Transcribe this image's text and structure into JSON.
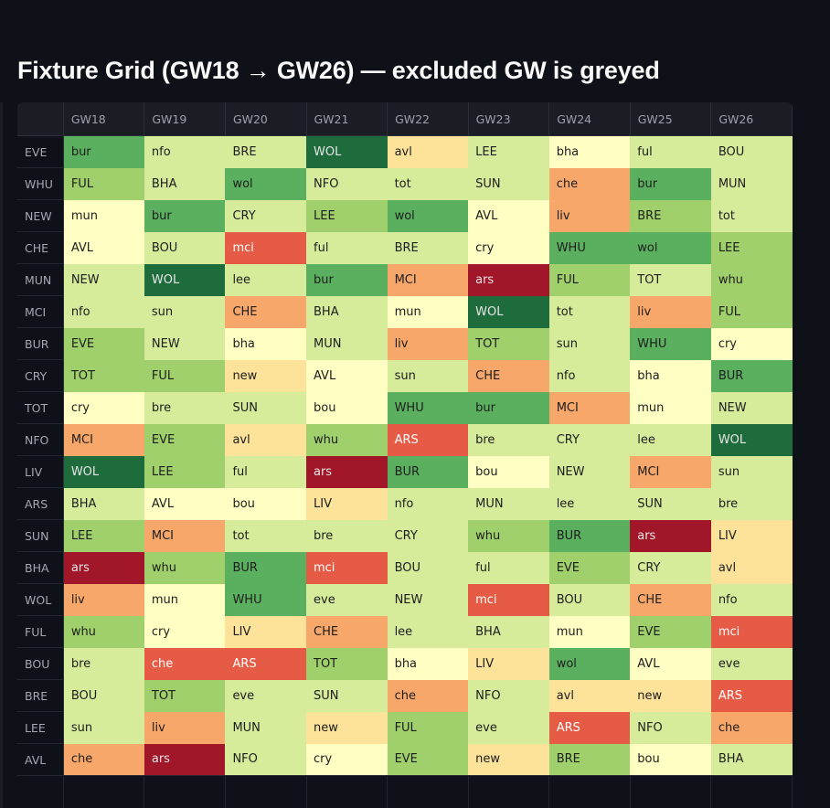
{
  "title": "Fixture Grid (GW18 → GW26) — excluded GW is greyed",
  "columns": [
    "GW18",
    "GW19",
    "GW20",
    "GW21",
    "GW22",
    "GW23",
    "GW24",
    "GW25",
    "GW26"
  ],
  "palette": {
    "1": "#1e6b3c",
    "2": "#5bb060",
    "3": "#9fd06b",
    "4": "#d6ec9b",
    "5": "#ffffc4",
    "6": "#fde29a",
    "7": "#f6a769",
    "8": "#e65b45",
    "9": "#a11628"
  },
  "rows": [
    {
      "team": "EVE",
      "cells": [
        [
          "bur",
          2
        ],
        [
          "nfo",
          4
        ],
        [
          "BRE",
          4
        ],
        [
          "WOL",
          1
        ],
        [
          "avl",
          6
        ],
        [
          "LEE",
          4
        ],
        [
          "bha",
          5
        ],
        [
          "ful",
          4
        ],
        [
          "BOU",
          4
        ]
      ]
    },
    {
      "team": "WHU",
      "cells": [
        [
          "FUL",
          3
        ],
        [
          "BHA",
          4
        ],
        [
          "wol",
          2
        ],
        [
          "NFO",
          4
        ],
        [
          "tot",
          4
        ],
        [
          "SUN",
          4
        ],
        [
          "che",
          7
        ],
        [
          "bur",
          2
        ],
        [
          "MUN",
          4
        ]
      ]
    },
    {
      "team": "NEW",
      "cells": [
        [
          "mun",
          5
        ],
        [
          "bur",
          2
        ],
        [
          "CRY",
          4
        ],
        [
          "LEE",
          3
        ],
        [
          "wol",
          2
        ],
        [
          "AVL",
          5
        ],
        [
          "liv",
          7
        ],
        [
          "BRE",
          3
        ],
        [
          "tot",
          4
        ]
      ]
    },
    {
      "team": "CHE",
      "cells": [
        [
          "AVL",
          5
        ],
        [
          "BOU",
          4
        ],
        [
          "mci",
          8
        ],
        [
          "ful",
          4
        ],
        [
          "BRE",
          4
        ],
        [
          "cry",
          5
        ],
        [
          "WHU",
          2
        ],
        [
          "wol",
          2
        ],
        [
          "LEE",
          3
        ]
      ]
    },
    {
      "team": "MUN",
      "cells": [
        [
          "NEW",
          4
        ],
        [
          "WOL",
          1
        ],
        [
          "lee",
          4
        ],
        [
          "bur",
          2
        ],
        [
          "MCI",
          7
        ],
        [
          "ars",
          9
        ],
        [
          "FUL",
          3
        ],
        [
          "TOT",
          4
        ],
        [
          "whu",
          3
        ]
      ]
    },
    {
      "team": "MCI",
      "cells": [
        [
          "nfo",
          4
        ],
        [
          "sun",
          4
        ],
        [
          "CHE",
          7
        ],
        [
          "BHA",
          4
        ],
        [
          "mun",
          5
        ],
        [
          "WOL",
          1
        ],
        [
          "tot",
          4
        ],
        [
          "liv",
          7
        ],
        [
          "FUL",
          3
        ]
      ]
    },
    {
      "team": "BUR",
      "cells": [
        [
          "EVE",
          3
        ],
        [
          "NEW",
          4
        ],
        [
          "bha",
          5
        ],
        [
          "MUN",
          4
        ],
        [
          "liv",
          7
        ],
        [
          "TOT",
          3
        ],
        [
          "sun",
          4
        ],
        [
          "WHU",
          2
        ],
        [
          "cry",
          5
        ]
      ]
    },
    {
      "team": "CRY",
      "cells": [
        [
          "TOT",
          3
        ],
        [
          "FUL",
          3
        ],
        [
          "new",
          6
        ],
        [
          "AVL",
          5
        ],
        [
          "sun",
          4
        ],
        [
          "CHE",
          7
        ],
        [
          "nfo",
          4
        ],
        [
          "bha",
          5
        ],
        [
          "BUR",
          2
        ]
      ]
    },
    {
      "team": "TOT",
      "cells": [
        [
          "cry",
          5
        ],
        [
          "bre",
          4
        ],
        [
          "SUN",
          4
        ],
        [
          "bou",
          5
        ],
        [
          "WHU",
          2
        ],
        [
          "bur",
          2
        ],
        [
          "MCI",
          7
        ],
        [
          "mun",
          5
        ],
        [
          "NEW",
          4
        ]
      ]
    },
    {
      "team": "NFO",
      "cells": [
        [
          "MCI",
          7
        ],
        [
          "EVE",
          3
        ],
        [
          "avl",
          6
        ],
        [
          "whu",
          3
        ],
        [
          "ARS",
          8
        ],
        [
          "bre",
          4
        ],
        [
          "CRY",
          4
        ],
        [
          "lee",
          4
        ],
        [
          "WOL",
          1
        ]
      ]
    },
    {
      "team": "LIV",
      "cells": [
        [
          "WOL",
          1
        ],
        [
          "LEE",
          3
        ],
        [
          "ful",
          4
        ],
        [
          "ars",
          9
        ],
        [
          "BUR",
          2
        ],
        [
          "bou",
          5
        ],
        [
          "NEW",
          4
        ],
        [
          "MCI",
          7
        ],
        [
          "sun",
          4
        ]
      ]
    },
    {
      "team": "ARS",
      "cells": [
        [
          "BHA",
          4
        ],
        [
          "AVL",
          5
        ],
        [
          "bou",
          5
        ],
        [
          "LIV",
          6
        ],
        [
          "nfo",
          4
        ],
        [
          "MUN",
          4
        ],
        [
          "lee",
          4
        ],
        [
          "SUN",
          4
        ],
        [
          "bre",
          4
        ]
      ]
    },
    {
      "team": "SUN",
      "cells": [
        [
          "LEE",
          3
        ],
        [
          "MCI",
          7
        ],
        [
          "tot",
          4
        ],
        [
          "bre",
          4
        ],
        [
          "CRY",
          4
        ],
        [
          "whu",
          3
        ],
        [
          "BUR",
          2
        ],
        [
          "ars",
          9
        ],
        [
          "LIV",
          6
        ]
      ]
    },
    {
      "team": "BHA",
      "cells": [
        [
          "ars",
          9
        ],
        [
          "whu",
          3
        ],
        [
          "BUR",
          2
        ],
        [
          "mci",
          8
        ],
        [
          "BOU",
          4
        ],
        [
          "ful",
          4
        ],
        [
          "EVE",
          3
        ],
        [
          "CRY",
          4
        ],
        [
          "avl",
          6
        ]
      ]
    },
    {
      "team": "WOL",
      "cells": [
        [
          "liv",
          7
        ],
        [
          "mun",
          5
        ],
        [
          "WHU",
          2
        ],
        [
          "eve",
          4
        ],
        [
          "NEW",
          4
        ],
        [
          "mci",
          8
        ],
        [
          "BOU",
          4
        ],
        [
          "CHE",
          7
        ],
        [
          "nfo",
          4
        ]
      ]
    },
    {
      "team": "FUL",
      "cells": [
        [
          "whu",
          3
        ],
        [
          "cry",
          5
        ],
        [
          "LIV",
          6
        ],
        [
          "CHE",
          7
        ],
        [
          "lee",
          4
        ],
        [
          "BHA",
          4
        ],
        [
          "mun",
          5
        ],
        [
          "EVE",
          3
        ],
        [
          "mci",
          8
        ]
      ]
    },
    {
      "team": "BOU",
      "cells": [
        [
          "bre",
          4
        ],
        [
          "che",
          8
        ],
        [
          "ARS",
          8
        ],
        [
          "TOT",
          3
        ],
        [
          "bha",
          5
        ],
        [
          "LIV",
          6
        ],
        [
          "wol",
          2
        ],
        [
          "AVL",
          5
        ],
        [
          "eve",
          4
        ]
      ]
    },
    {
      "team": "BRE",
      "cells": [
        [
          "BOU",
          4
        ],
        [
          "TOT",
          3
        ],
        [
          "eve",
          4
        ],
        [
          "SUN",
          4
        ],
        [
          "che",
          7
        ],
        [
          "NFO",
          4
        ],
        [
          "avl",
          6
        ],
        [
          "new",
          6
        ],
        [
          "ARS",
          8
        ]
      ]
    },
    {
      "team": "LEE",
      "cells": [
        [
          "sun",
          4
        ],
        [
          "liv",
          7
        ],
        [
          "MUN",
          4
        ],
        [
          "new",
          6
        ],
        [
          "FUL",
          3
        ],
        [
          "eve",
          4
        ],
        [
          "ARS",
          8
        ],
        [
          "NFO",
          4
        ],
        [
          "che",
          7
        ]
      ]
    },
    {
      "team": "AVL",
      "cells": [
        [
          "che",
          7
        ],
        [
          "ars",
          9
        ],
        [
          "NFO",
          4
        ],
        [
          "cry",
          5
        ],
        [
          "EVE",
          3
        ],
        [
          "new",
          6
        ],
        [
          "BRE",
          3
        ],
        [
          "bou",
          5
        ],
        [
          "BHA",
          4
        ]
      ]
    }
  ]
}
